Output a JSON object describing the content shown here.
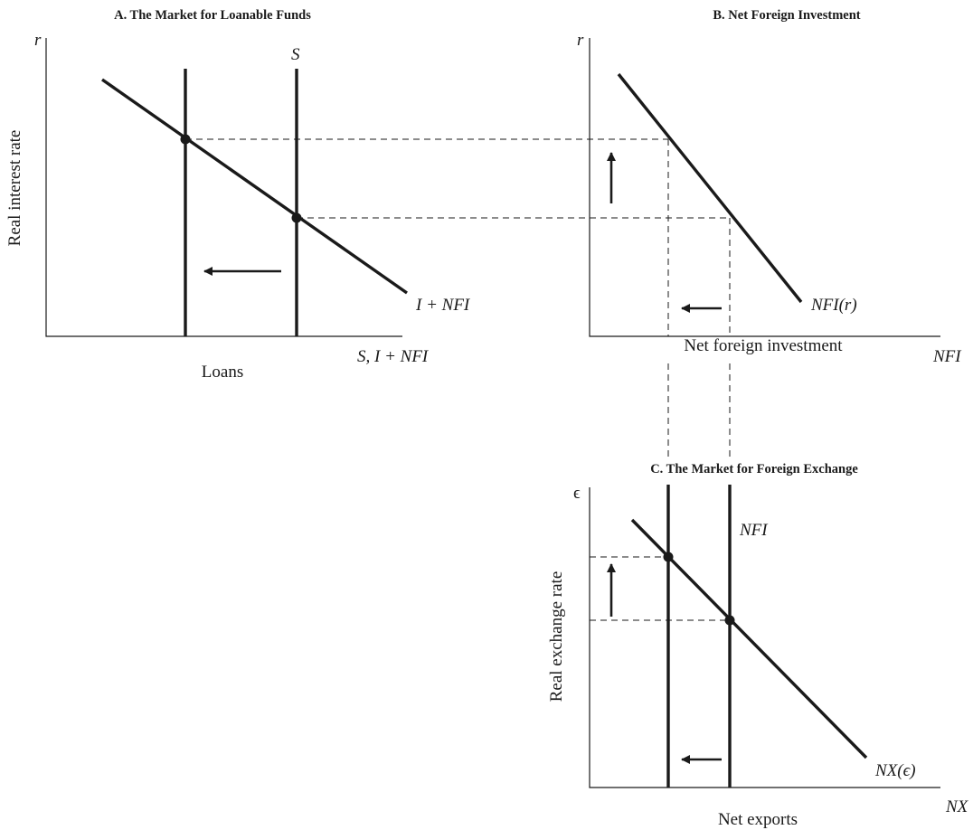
{
  "panel_a": {
    "title": "A. The Market for Loanable Funds",
    "y_symbol": "r",
    "y_label": "Real interest rate",
    "x_label": "Loans",
    "x_symbol": "S, I + NFI",
    "curve_s_label": "S",
    "curve_demand_label": "I + NFI"
  },
  "panel_b": {
    "title": "B. Net Foreign Investment",
    "y_symbol": "r",
    "x_symbol": "NFI",
    "x_label": "Net foreign investment",
    "curve_label": "NFI(r)"
  },
  "panel_c": {
    "title": "C. The Market for Foreign Exchange",
    "y_symbol": "ϵ",
    "y_label": "Real exchange rate",
    "x_symbol": "NX",
    "x_label": "Net exports",
    "curve_supply_label": "NFI",
    "curve_demand_label": "NX(ϵ)"
  }
}
